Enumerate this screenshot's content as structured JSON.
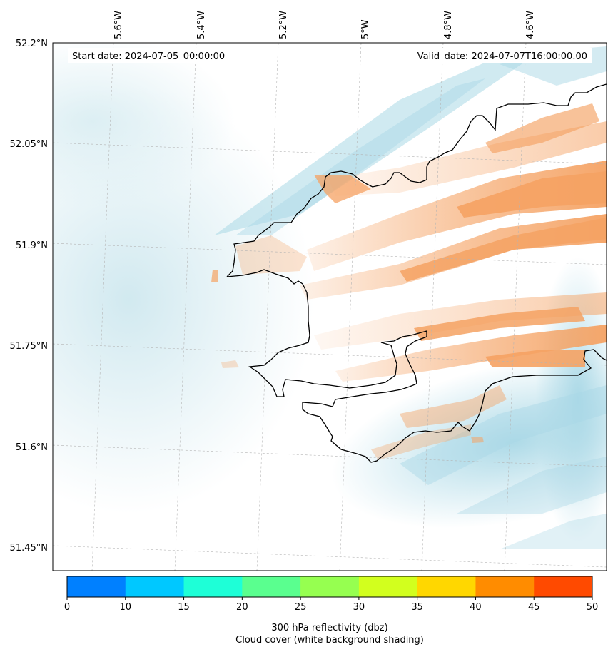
{
  "map": {
    "start_label": "Start date: 2024-07-05_00:00:00",
    "valid_label": "Valid_date: 2024-07-07T16:00:00.00",
    "lon_labels": [
      "5.6°W",
      "5.4°W",
      "5.2°W",
      "5°W",
      "4.8°W",
      "4.6°W"
    ],
    "lat_labels": [
      "52.2°N",
      "52.05°N",
      "51.9°N",
      "51.75°N",
      "51.6°N",
      "51.45°N"
    ],
    "gridlines": true,
    "coastline_color": "#000000",
    "cloud_color": "#a9d8e6",
    "reflectivity_color": "#f5a263"
  },
  "colorbar": {
    "ticks": [
      "0",
      "10",
      "15",
      "20",
      "25",
      "30",
      "35",
      "40",
      "45",
      "50"
    ],
    "colors": [
      "#0080ff",
      "#00c8ff",
      "#1effd7",
      "#5aff8f",
      "#96ff50",
      "#d2ff1e",
      "#ffd700",
      "#ff8c00",
      "#ff4a00"
    ],
    "label_line1": "300 hPa reflectivity (dbz)",
    "label_line2": "Cloud cover (white background shading)"
  }
}
